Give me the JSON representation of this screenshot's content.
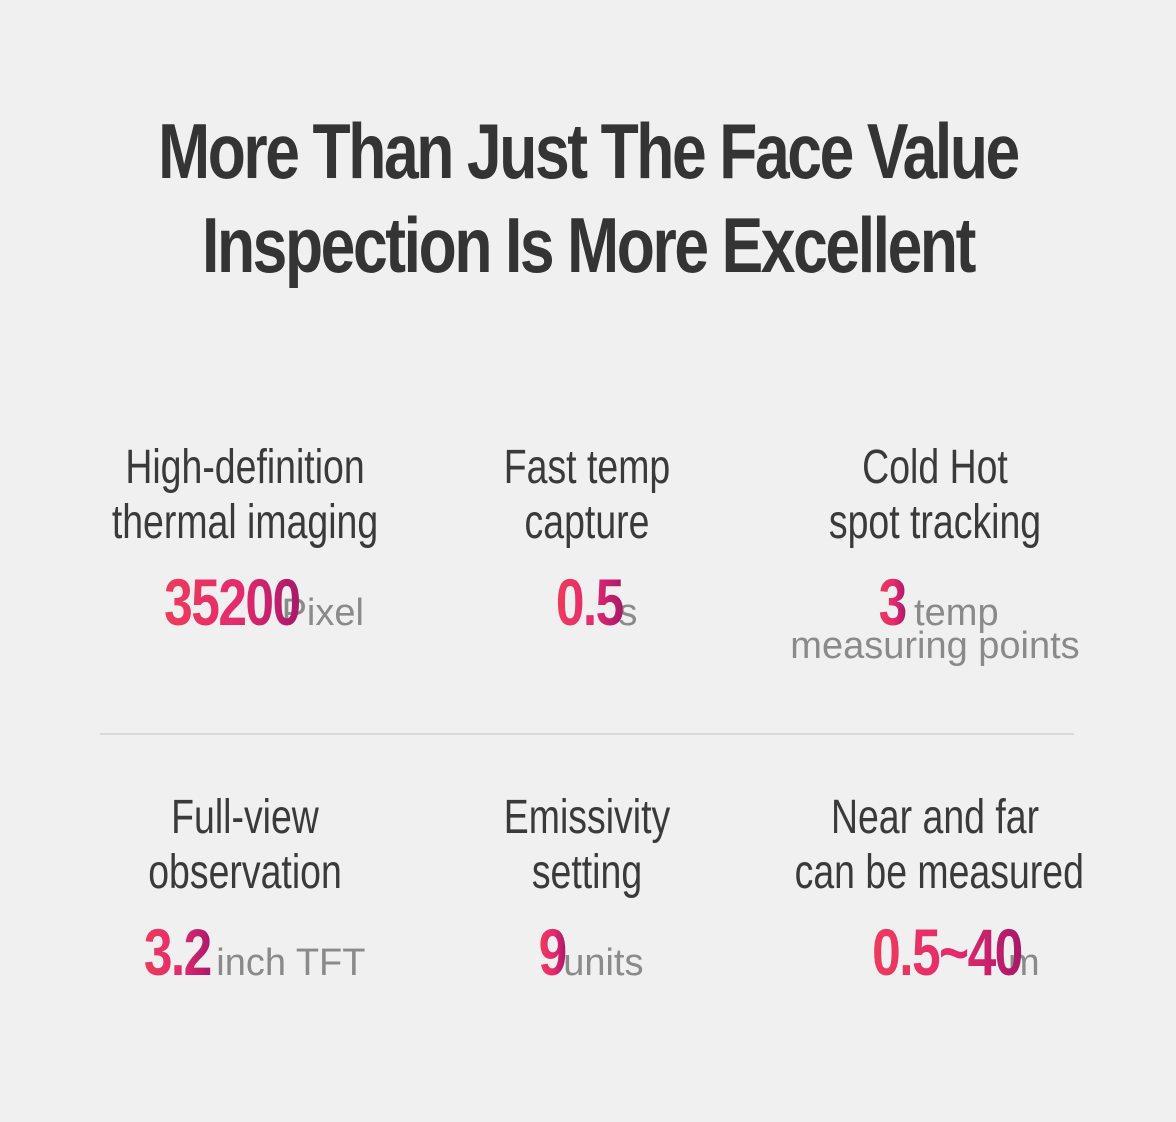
{
  "headline": {
    "line1": "More Than Just The Face Value",
    "line2": "Inspection Is More Excellent"
  },
  "features": [
    {
      "title1": "High-definition",
      "title2": "thermal imaging",
      "value": "35200",
      "unit": "Pixel"
    },
    {
      "title1": "Fast temp",
      "title2": "capture",
      "value": "0.5",
      "unit": "s"
    },
    {
      "title1": "Cold Hot",
      "title2": "spot tracking",
      "value": "3",
      "unit": "temp",
      "extra": "measuring points"
    },
    {
      "title1": "Full-view",
      "title2": "observation",
      "value": "3.2",
      "unit": "inch TFT"
    },
    {
      "title1": "Emissivity",
      "title2": "setting",
      "value": "9",
      "unit": "units"
    },
    {
      "title1": "Near and far",
      "title2": "can be measured",
      "value": "0.5~40",
      "unit": "m"
    }
  ],
  "colors": {
    "background": "#f1f0f1",
    "headline": "#343434",
    "accent_start": "#ee3b5a",
    "accent_end": "#a8186a",
    "unit_text": "#8a8a8a"
  }
}
